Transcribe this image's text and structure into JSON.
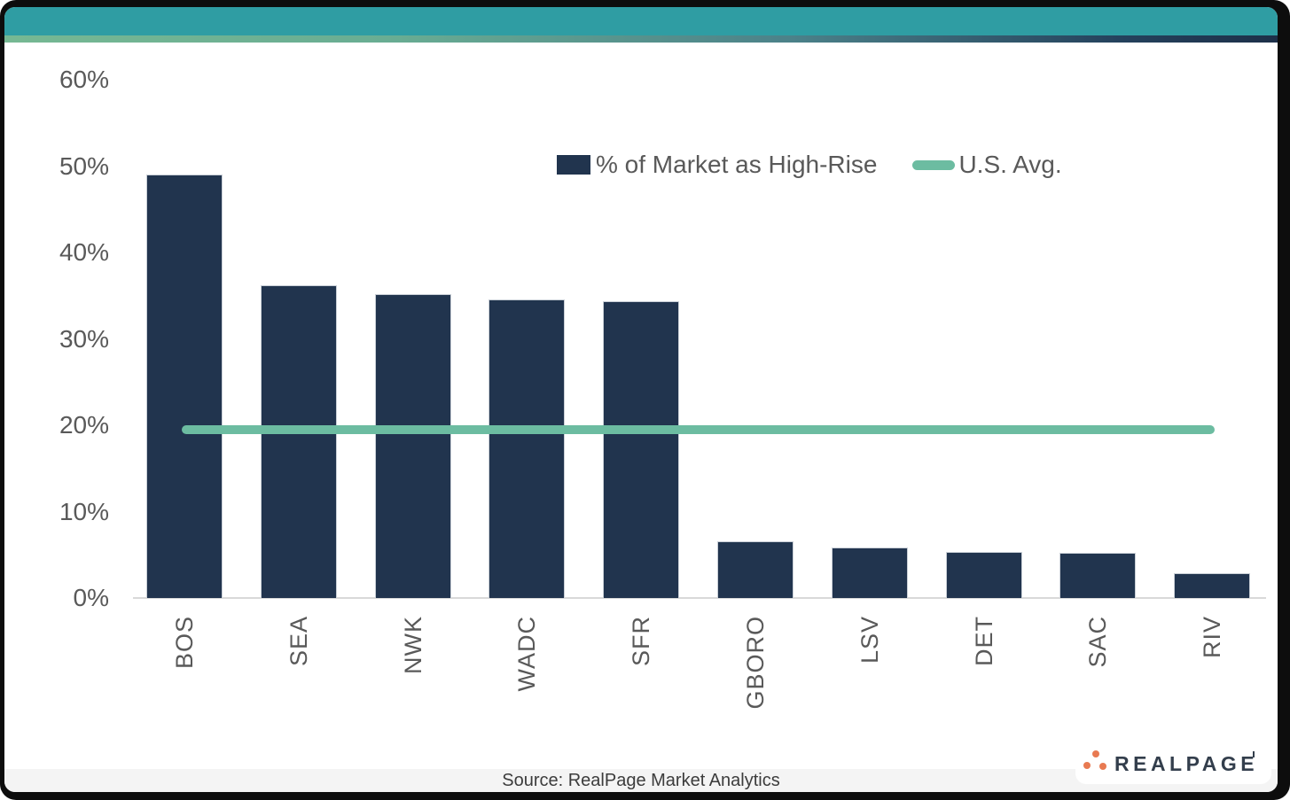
{
  "chart_data": {
    "type": "bar",
    "categories": [
      "BOS",
      "SEA",
      "NWK",
      "WADC",
      "SFR",
      "GBORO",
      "LSV",
      "DET",
      "SAC",
      "RIV"
    ],
    "values": [
      49.0,
      36.2,
      35.2,
      34.6,
      34.4,
      6.6,
      5.8,
      5.3,
      5.2,
      2.9
    ],
    "series": [
      {
        "name": "% of Market as High-Rise",
        "values": [
          49.0,
          36.2,
          35.2,
          34.6,
          34.4,
          6.6,
          5.8,
          5.3,
          5.2,
          2.9
        ]
      }
    ],
    "us_avg": 19.5,
    "us_avg_label": "U.S. Avg.",
    "title": "",
    "xlabel": "",
    "ylabel": "",
    "ylim": [
      0,
      60
    ],
    "yticks": [
      "60%",
      "50%",
      "40%",
      "30%",
      "20%",
      "10%",
      "0%"
    ],
    "grid": false,
    "legend_position": "top-center",
    "bar_color": "#21344e",
    "line_color": "#6cbca1",
    "tick_color": "#595959"
  },
  "legend": {
    "series_label": "% of Market as High-Rise",
    "avg_label": "U.S. Avg."
  },
  "footer": {
    "source": "Source: RealPage Market Analytics"
  },
  "logo": {
    "text": "REALPAGE"
  },
  "theme": {
    "header_teal": "#2f9da3",
    "gradient_left": "#76b893",
    "gradient_right": "#1d3049",
    "frame_color": "#0d0d0d"
  }
}
